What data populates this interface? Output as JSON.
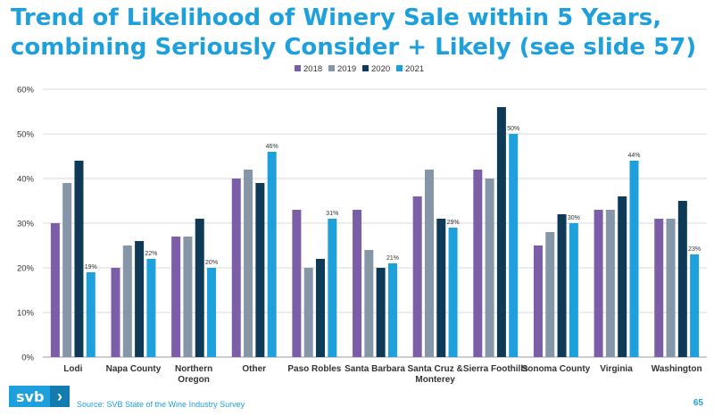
{
  "title": "Trend of Likelihood of Winery Sale within 5 Years, combining Seriously Consider + Likely (see slide 57)",
  "footer": {
    "brand": "svb",
    "chevron": "›",
    "source": "Source: SVB State of the Wine Industry Survey",
    "page_number": "65"
  },
  "colors": {
    "2018": "#7b5ea7",
    "2019": "#8496a7",
    "2020": "#0e3a58",
    "2021": "#1ea0dc"
  },
  "chart_data": {
    "type": "bar",
    "title": "Trend of Likelihood of Winery Sale within 5 Years, combining Seriously Consider + Likely (see slide 57)",
    "categories": [
      "Lodi",
      "Napa County",
      "Northern Oregon",
      "Other",
      "Paso Robles",
      "Santa Barbara",
      "Santa Cruz & Monterey",
      "Sierra Foothills",
      "Sonoma County",
      "Virginia",
      "Washington"
    ],
    "category_lines": [
      [
        "Lodi"
      ],
      [
        "Napa County"
      ],
      [
        "Northern",
        "Oregon"
      ],
      [
        "Other"
      ],
      [
        "Paso Robles"
      ],
      [
        "Santa Barbara"
      ],
      [
        "Santa Cruz &",
        "Monterey"
      ],
      [
        "Sierra Foothills"
      ],
      [
        "Sonoma County"
      ],
      [
        "Virginia"
      ],
      [
        "Washington"
      ]
    ],
    "series": [
      {
        "name": "2018",
        "values": [
          30,
          20,
          27,
          40,
          33,
          33,
          36,
          42,
          25,
          33,
          31
        ]
      },
      {
        "name": "2019",
        "values": [
          39,
          25,
          27,
          42,
          20,
          24,
          42,
          40,
          28,
          33,
          31
        ]
      },
      {
        "name": "2020",
        "values": [
          44,
          26,
          31,
          39,
          22,
          20,
          31,
          56,
          32,
          36,
          35
        ]
      },
      {
        "name": "2021",
        "values": [
          19,
          22,
          20,
          46,
          31,
          21,
          29,
          50,
          30,
          44,
          23
        ]
      }
    ],
    "data_labels": [
      "19%",
      "22%",
      "20%",
      "46%",
      "31%",
      "21%",
      "29%",
      "50%",
      "30%",
      "44%",
      "23%"
    ],
    "y_ticks": [
      "0%",
      "10%",
      "20%",
      "30%",
      "40%",
      "50%",
      "60%"
    ],
    "ylim": [
      0,
      60
    ],
    "legend_position": "top-center",
    "grid": true
  }
}
